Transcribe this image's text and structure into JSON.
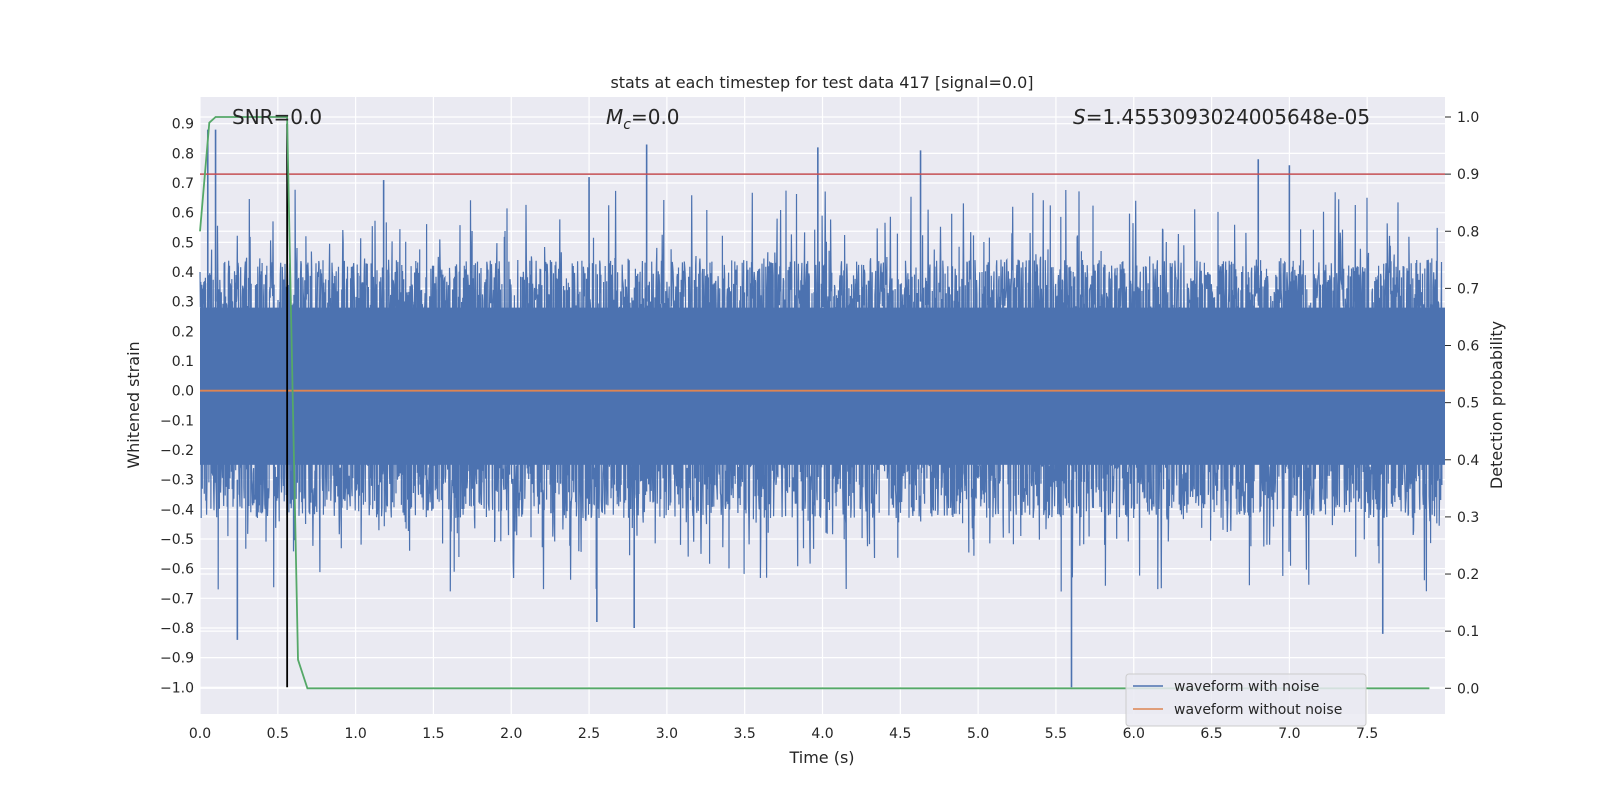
{
  "chart_data": {
    "type": "line",
    "title": "stats at each timestep for test data 417 [signal=0.0]",
    "xlabel": "Time (s)",
    "ylabel": "Whitened strain",
    "y2label": "Detection probability",
    "xlim": [
      0.0,
      8.0
    ],
    "ylim": [
      -1.09,
      0.99
    ],
    "y2lim": [
      -0.045,
      1.035
    ],
    "x_ticks": [
      0.0,
      0.5,
      1.0,
      1.5,
      2.0,
      2.5,
      3.0,
      3.5,
      4.0,
      4.5,
      5.0,
      5.5,
      6.0,
      6.5,
      7.0,
      7.5
    ],
    "x_tick_labels": [
      "0.0",
      "0.5",
      "1.0",
      "1.5",
      "2.0",
      "2.5",
      "3.0",
      "3.5",
      "4.0",
      "4.5",
      "5.0",
      "5.5",
      "6.0",
      "6.5",
      "7.0",
      "7.5"
    ],
    "y_ticks": [
      0.9,
      0.8,
      0.7,
      0.6,
      0.5,
      0.4,
      0.3,
      0.2,
      0.1,
      0.0,
      -0.1,
      -0.2,
      -0.3,
      -0.4,
      -0.5,
      -0.6,
      -0.7,
      -0.8,
      -0.9,
      -1.0
    ],
    "y_tick_labels": [
      "0.9",
      "0.8",
      "0.7",
      "0.6",
      "0.5",
      "0.4",
      "0.3",
      "0.2",
      "0.1",
      "0.0",
      "−0.1",
      "−0.2",
      "−0.3",
      "−0.4",
      "−0.5",
      "−0.6",
      "−0.7",
      "−0.8",
      "−0.9",
      "−1.0"
    ],
    "y2_ticks": [
      1.0,
      0.9,
      0.8,
      0.7,
      0.6,
      0.5,
      0.4,
      0.3,
      0.2,
      0.1,
      0.0
    ],
    "y2_tick_labels": [
      "1.0",
      "0.9",
      "0.8",
      "0.7",
      "0.6",
      "0.5",
      "0.4",
      "0.3",
      "0.2",
      "0.1",
      "0.0"
    ],
    "annotations": {
      "snr": "SNR=0.0",
      "mc_symbol": "M",
      "mc_sub": "c",
      "mc_value": "=0.0",
      "s_symbol": "S",
      "s_value": "=1.4553093024005648e-05"
    },
    "threshold": {
      "axis": "right",
      "value": 0.9
    },
    "marker_line": {
      "x": 0.56,
      "y_from": -1.0,
      "y_to": 0.9
    },
    "series": [
      {
        "name": "waveform with noise",
        "axis": "left",
        "style": "dense-noise",
        "typical_upper": [
          0.28,
          0.55
        ],
        "typical_lower": [
          -0.55,
          -0.25
        ],
        "peaks": [
          {
            "x": 0.05,
            "y": 0.88
          },
          {
            "x": 0.1,
            "y": 0.88
          },
          {
            "x": 0.24,
            "y": -0.84
          },
          {
            "x": 1.18,
            "y": 0.71
          },
          {
            "x": 2.5,
            "y": 0.72
          },
          {
            "x": 2.55,
            "y": -0.78
          },
          {
            "x": 2.79,
            "y": -0.8
          },
          {
            "x": 2.87,
            "y": 0.83
          },
          {
            "x": 3.97,
            "y": 0.82
          },
          {
            "x": 4.63,
            "y": 0.81
          },
          {
            "x": 5.6,
            "y": -1.0
          },
          {
            "x": 6.8,
            "y": 0.78
          },
          {
            "x": 7.0,
            "y": 0.76
          },
          {
            "x": 7.6,
            "y": -0.82
          }
        ],
        "color": "#4c72b0"
      },
      {
        "name": "waveform without noise",
        "axis": "left",
        "x": [
          0.0,
          8.0
        ],
        "y": [
          0.0,
          0.0
        ],
        "color": "#dd8452"
      },
      {
        "name": "detection probability",
        "axis": "right",
        "x": [
          0.0,
          0.06,
          0.1,
          0.56,
          0.63,
          0.69,
          7.9
        ],
        "y": [
          0.8,
          0.99,
          1.0,
          1.0,
          0.05,
          0.0,
          0.0
        ],
        "color": "#55a868"
      }
    ],
    "legend": {
      "position": "lower-right",
      "entries": [
        "waveform with noise",
        "waveform without noise"
      ]
    },
    "grid": true
  },
  "colors": {
    "axes_bg": "#eaeaf2",
    "noise": "#4c72b0",
    "clean": "#dd8452",
    "probability": "#55a868",
    "threshold": "#c44e52",
    "marker": "#000000"
  }
}
